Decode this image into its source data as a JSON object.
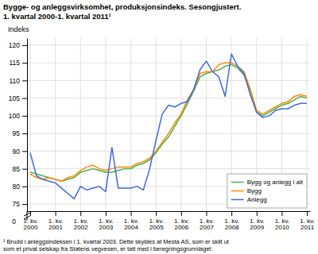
{
  "chart_data": {
    "type": "line",
    "title": "Bygge- og anleggsvirksomhet, produksjonsindeks. Sesongjustert.",
    "subtitle": "1. kvartal 2000-1. kvartal 2011¹",
    "y_label": "Indeks",
    "footnote": "¹ Brudd i anleggsindeksen i 1. kvartal 2003. Dette skyldes at Mesta AS, som er skilt ut\nsom et privat selskap fra Statens vegvesen, er tatt med i beregningsgrunnlaget.",
    "annotations": [
      {
        "text": "0"
      }
    ],
    "categories": [
      "1. kv.\n2000",
      null,
      null,
      null,
      "1. kv.\n2001",
      null,
      null,
      null,
      "1. kv.\n2002",
      null,
      null,
      null,
      "1. kv.\n2003",
      null,
      null,
      null,
      "1. kv.\n2004",
      null,
      null,
      null,
      "1. kv.\n2005",
      null,
      null,
      null,
      "1. kv.\n2006",
      null,
      null,
      null,
      "1. kv.\n2007",
      null,
      null,
      null,
      "1. kv.\n2008",
      null,
      null,
      null,
      "1. kv.\n2009",
      null,
      null,
      null,
      "1. kv.\n2010",
      null,
      null,
      null,
      "1. kv.\n2011"
    ],
    "series": [
      {
        "name": "Bygg og anlegg i alt",
        "color": "#4CAF50",
        "values": [
          84.0,
          83.5,
          83.0,
          82.5,
          82.0,
          81.5,
          82.0,
          82.5,
          84.0,
          84.5,
          85.0,
          84.5,
          84.0,
          84.0,
          84.5,
          85.0,
          85.0,
          86.0,
          86.5,
          87.5,
          89.5,
          92.0,
          94.0,
          97.0,
          100.0,
          103.5,
          107.0,
          111.0,
          112.0,
          112.5,
          113.0,
          114.0,
          114.5,
          113.5,
          111.5,
          107.0,
          101.0,
          100.0,
          101.0,
          102.0,
          103.0,
          103.5,
          104.5,
          105.5,
          105.0
        ]
      },
      {
        "name": "Bygg",
        "color": "#FF8C00",
        "values": [
          83.5,
          82.5,
          82.0,
          82.5,
          82.0,
          81.5,
          82.5,
          83.0,
          84.5,
          85.5,
          86.0,
          85.0,
          84.5,
          85.0,
          85.5,
          85.5,
          85.5,
          86.5,
          87.0,
          88.0,
          90.0,
          92.5,
          95.0,
          98.0,
          100.5,
          104.5,
          107.5,
          112.0,
          112.5,
          112.5,
          114.5,
          115.0,
          115.0,
          114.0,
          112.5,
          107.5,
          101.5,
          100.5,
          101.5,
          102.5,
          103.5,
          104.0,
          105.5,
          106.0,
          105.5
        ]
      },
      {
        "name": "Anlegg",
        "color": "#4169E1",
        "values": [
          89.5,
          83.0,
          82.0,
          81.5,
          81.0,
          79.5,
          78.0,
          76.5,
          80.0,
          79.0,
          79.5,
          80.0,
          78.5,
          91.0,
          79.5,
          79.5,
          79.5,
          80.0,
          79.0,
          85.0,
          93.0,
          100.5,
          103.0,
          102.5,
          103.5,
          104.0,
          107.5,
          113.0,
          115.5,
          112.5,
          111.0,
          105.5,
          117.5,
          114.0,
          112.0,
          106.0,
          101.0,
          99.5,
          100.0,
          101.5,
          102.0,
          102.0,
          103.0,
          103.5,
          103.5
        ]
      }
    ],
    "ylim": [
      73,
      122
    ],
    "yticks": [
      75,
      80,
      85,
      90,
      95,
      100,
      105,
      110,
      115,
      120
    ],
    "grid": true,
    "legend": "lower right"
  }
}
